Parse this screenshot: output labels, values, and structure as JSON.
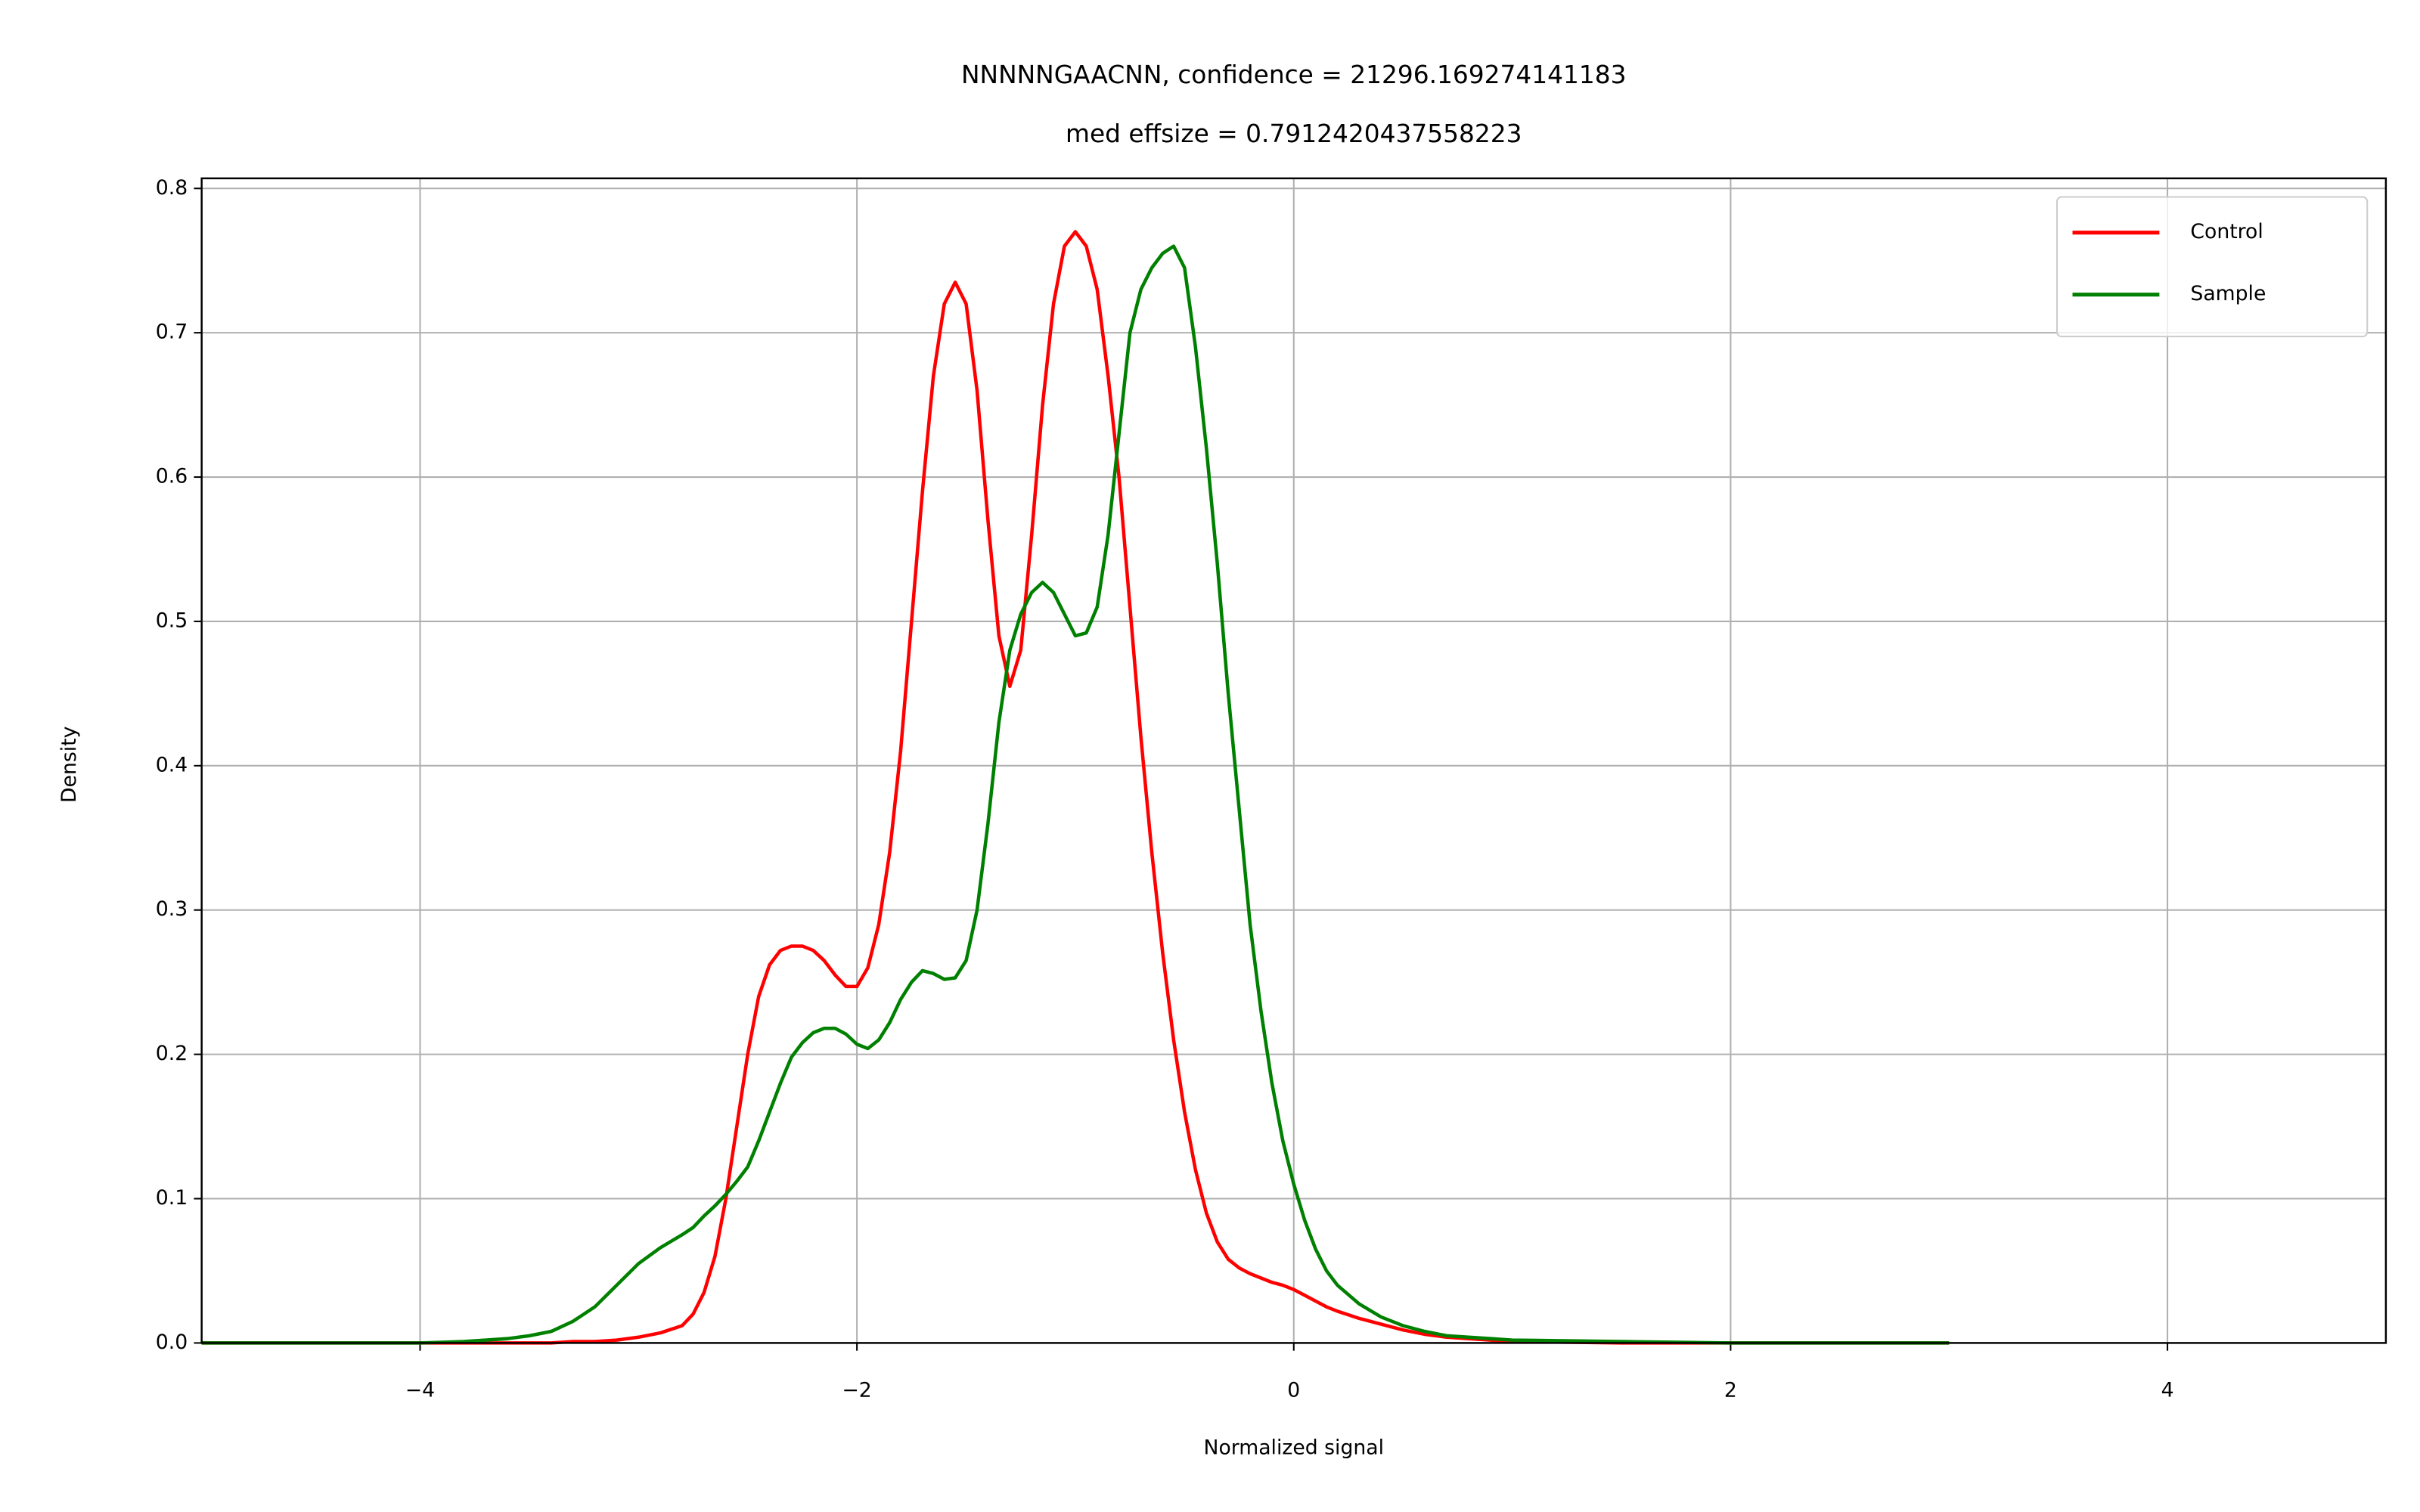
{
  "chart_data": {
    "type": "line",
    "title": "NNNNNGAACNN, confidence = 21296.169274141183",
    "subtitle": "med effsize = 0.7912420437558223",
    "x_label": "Normalized signal",
    "y_label": "Density",
    "xlim": [
      -5,
      5
    ],
    "ylim": [
      0,
      0.807
    ],
    "xticks": [
      {
        "value": -4,
        "label": "−4"
      },
      {
        "value": -2,
        "label": "−2"
      },
      0,
      2,
      4
    ],
    "yticks": [
      {
        "value": 0,
        "label": "0.0"
      },
      0.1,
      0.2,
      0.3,
      0.4,
      0.5,
      0.6,
      0.7,
      0.8
    ],
    "grid": true,
    "legend": "upper right",
    "x": [
      -5,
      -4.5,
      -4,
      -3.9,
      -3.8,
      -3.7,
      -3.6,
      -3.5,
      -3.4,
      -3.3,
      -3.2,
      -3.1,
      -3.0,
      -2.9,
      -2.8,
      -2.75,
      -2.7,
      -2.65,
      -2.6,
      -2.55,
      -2.5,
      -2.45,
      -2.4,
      -2.35,
      -2.3,
      -2.25,
      -2.2,
      -2.15,
      -2.1,
      -2.05,
      -2.0,
      -1.95,
      -1.9,
      -1.85,
      -1.8,
      -1.75,
      -1.7,
      -1.65,
      -1.6,
      -1.55,
      -1.5,
      -1.45,
      -1.4,
      -1.35,
      -1.3,
      -1.25,
      -1.2,
      -1.15,
      -1.1,
      -1.05,
      -1.0,
      -0.95,
      -0.9,
      -0.85,
      -0.8,
      -0.75,
      -0.7,
      -0.65,
      -0.6,
      -0.55,
      -0.5,
      -0.45,
      -0.4,
      -0.35,
      -0.3,
      -0.25,
      -0.2,
      -0.15,
      -0.1,
      -0.05,
      0,
      0.05,
      0.1,
      0.15,
      0.2,
      0.3,
      0.4,
      0.5,
      0.6,
      0.7,
      0.8,
      0.9,
      1.0,
      1.5,
      2,
      2.5,
      3
    ],
    "series": [
      {
        "name": "Control",
        "color": "#ff0000",
        "values": [
          0,
          0,
          0,
          0,
          0,
          0,
          0,
          0,
          0,
          0.001,
          0.001,
          0.002,
          0.004,
          0.007,
          0.012,
          0.02,
          0.035,
          0.06,
          0.1,
          0.15,
          0.2,
          0.24,
          0.262,
          0.272,
          0.275,
          0.275,
          0.272,
          0.265,
          0.255,
          0.247,
          0.247,
          0.26,
          0.29,
          0.34,
          0.41,
          0.5,
          0.59,
          0.67,
          0.72,
          0.735,
          0.72,
          0.66,
          0.57,
          0.49,
          0.455,
          0.48,
          0.56,
          0.65,
          0.72,
          0.76,
          0.77,
          0.76,
          0.73,
          0.67,
          0.6,
          0.51,
          0.42,
          0.34,
          0.27,
          0.21,
          0.16,
          0.12,
          0.09,
          0.07,
          0.058,
          0.052,
          0.048,
          0.045,
          0.042,
          0.04,
          0.037,
          0.033,
          0.029,
          0.025,
          0.022,
          0.017,
          0.013,
          0.009,
          0.006,
          0.004,
          0.003,
          0.002,
          0.001,
          0,
          0,
          0,
          0
        ]
      },
      {
        "name": "Sample",
        "color": "#008000",
        "values": [
          0,
          0,
          0,
          0.0005,
          0.001,
          0.002,
          0.003,
          0.005,
          0.008,
          0.015,
          0.025,
          0.04,
          0.055,
          0.066,
          0.075,
          0.08,
          0.088,
          0.095,
          0.103,
          0.112,
          0.122,
          0.14,
          0.16,
          0.18,
          0.198,
          0.208,
          0.215,
          0.218,
          0.218,
          0.214,
          0.207,
          0.204,
          0.21,
          0.222,
          0.238,
          0.25,
          0.258,
          0.256,
          0.252,
          0.253,
          0.265,
          0.3,
          0.36,
          0.43,
          0.48,
          0.505,
          0.52,
          0.527,
          0.52,
          0.505,
          0.49,
          0.492,
          0.51,
          0.56,
          0.63,
          0.7,
          0.73,
          0.745,
          0.755,
          0.76,
          0.745,
          0.69,
          0.62,
          0.54,
          0.45,
          0.37,
          0.29,
          0.23,
          0.18,
          0.14,
          0.11,
          0.085,
          0.065,
          0.05,
          0.04,
          0.027,
          0.018,
          0.012,
          0.008,
          0.005,
          0.004,
          0.003,
          0.002,
          0.001,
          0,
          0,
          0
        ]
      }
    ]
  }
}
